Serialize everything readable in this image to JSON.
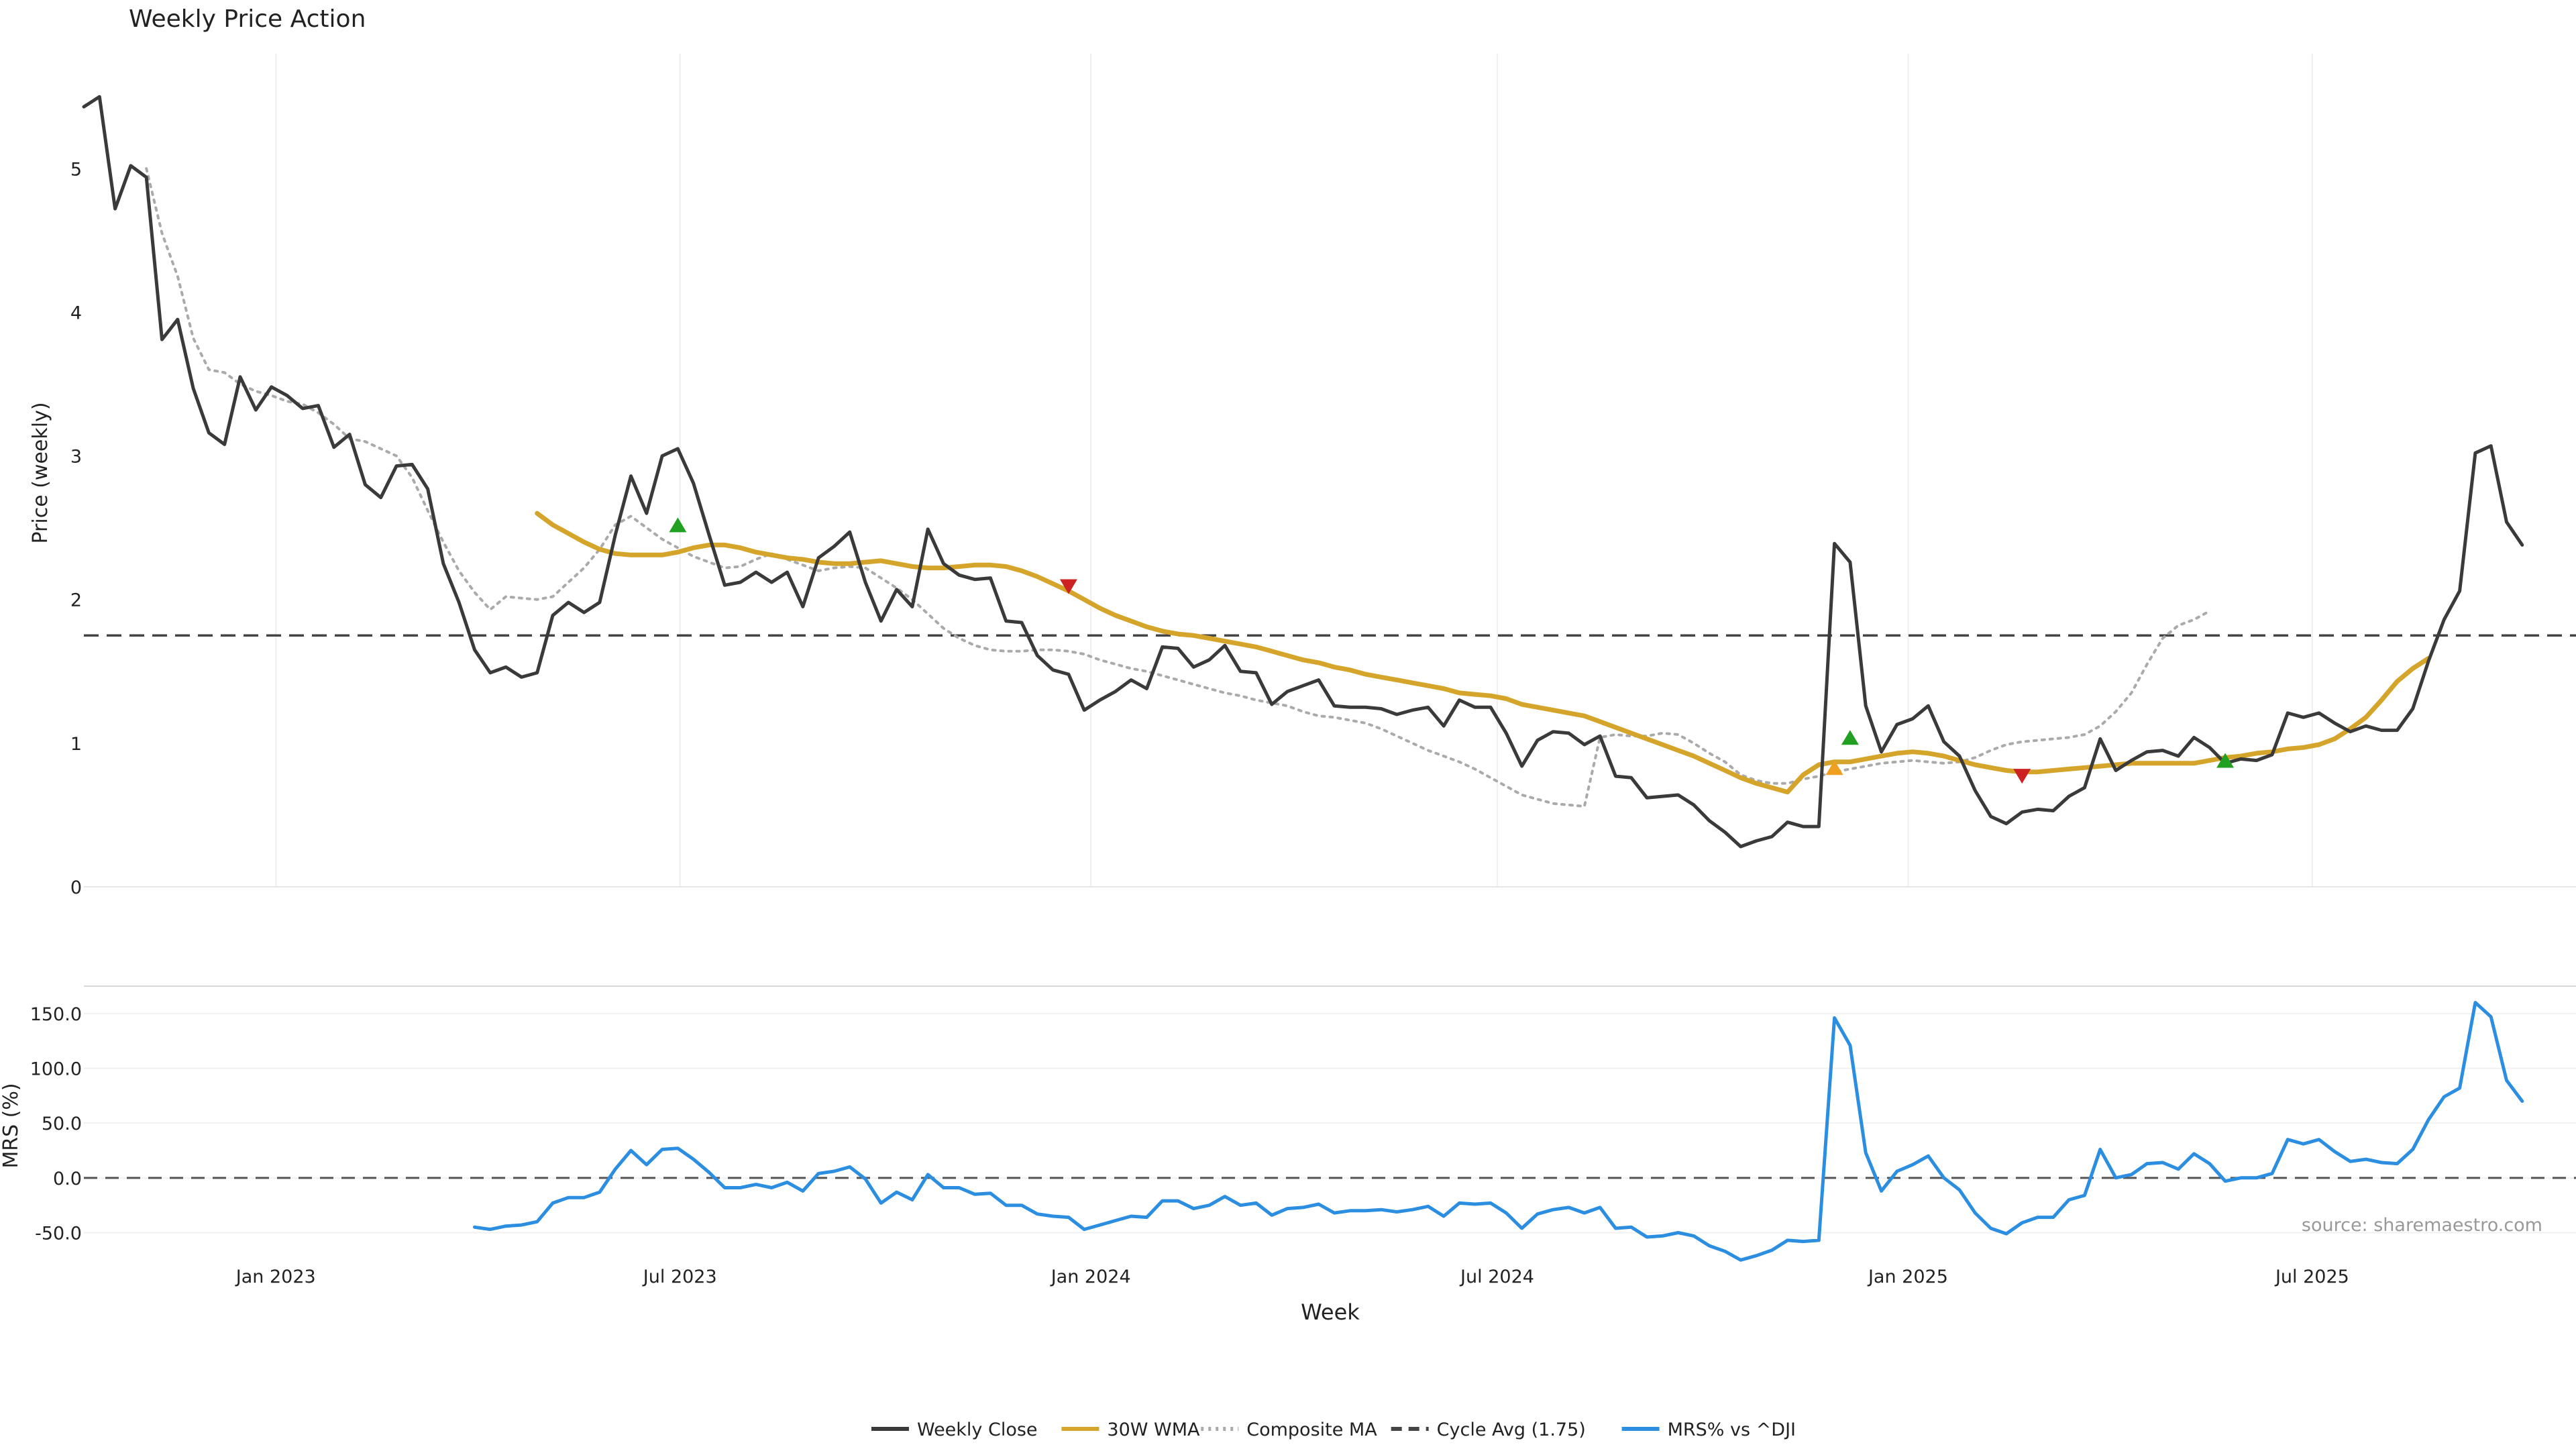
{
  "chart_data": [
    {
      "type": "line",
      "title": "Weekly Price Action",
      "ylabel": "Price (weekly)",
      "xlabel": "",
      "ylim": [
        0,
        5.8
      ],
      "yticks": [
        0,
        1,
        2,
        3,
        4,
        5
      ],
      "grid": "vertical",
      "x_start": "2022-10-07",
      "x_step_days": 7,
      "series": [
        {
          "name": "Weekly Close",
          "color": "#3a3a3a",
          "style": "solid",
          "values": [
            5.43,
            5.5,
            4.72,
            5.02,
            4.94,
            3.81,
            3.95,
            3.47,
            3.16,
            3.08,
            3.55,
            3.32,
            3.48,
            3.42,
            3.33,
            3.35,
            3.06,
            3.15,
            2.8,
            2.71,
            2.93,
            2.94,
            2.77,
            2.25,
            1.98,
            1.65,
            1.49,
            1.53,
            1.46,
            1.49,
            1.89,
            1.98,
            1.91,
            1.98,
            2.45,
            2.86,
            2.6,
            3.0,
            3.05,
            2.81,
            2.45,
            2.1,
            2.12,
            2.19,
            2.12,
            2.19,
            1.95,
            2.29,
            2.37,
            2.47,
            2.12,
            1.85,
            2.07,
            1.95,
            2.49,
            2.25,
            2.17,
            2.14,
            2.15,
            1.85,
            1.84,
            1.61,
            1.51,
            1.48,
            1.23,
            1.3,
            1.36,
            1.44,
            1.38,
            1.67,
            1.66,
            1.53,
            1.58,
            1.68,
            1.5,
            1.49,
            1.27,
            1.36,
            1.4,
            1.44,
            1.26,
            1.25,
            1.25,
            1.24,
            1.2,
            1.23,
            1.25,
            1.12,
            1.3,
            1.25,
            1.25,
            1.07,
            0.84,
            1.02,
            1.08,
            1.07,
            0.99,
            1.05,
            0.77,
            0.76,
            0.62,
            0.63,
            0.64,
            0.57,
            0.46,
            0.38,
            0.28,
            0.32,
            0.35,
            0.45,
            0.42,
            0.42,
            2.39,
            2.26,
            1.26,
            0.94,
            1.13,
            1.17,
            1.26,
            1.01,
            0.91,
            0.67,
            0.49,
            0.44,
            0.52,
            0.54,
            0.53,
            0.63,
            0.69,
            1.03,
            0.81,
            0.88,
            0.94,
            0.95,
            0.91,
            1.04,
            0.97,
            0.86,
            0.89,
            0.88,
            0.92,
            1.21,
            1.18,
            1.21,
            1.14,
            1.08,
            1.12,
            1.09,
            1.09,
            1.24,
            1.57,
            1.86,
            2.06,
            3.02,
            3.07,
            2.54,
            2.38
          ]
        },
        {
          "name": "30W WMA",
          "color": "#d4a52a",
          "style": "solid",
          "start_index": 29,
          "values": [
            2.6,
            2.52,
            2.46,
            2.4,
            2.35,
            2.32,
            2.31,
            2.31,
            2.31,
            2.33,
            2.36,
            2.38,
            2.38,
            2.36,
            2.33,
            2.31,
            2.29,
            2.28,
            2.26,
            2.25,
            2.25,
            2.26,
            2.27,
            2.25,
            2.23,
            2.22,
            2.22,
            2.23,
            2.24,
            2.24,
            2.23,
            2.2,
            2.16,
            2.11,
            2.06,
            2.0,
            1.94,
            1.89,
            1.85,
            1.81,
            1.78,
            1.76,
            1.75,
            1.73,
            1.71,
            1.69,
            1.67,
            1.64,
            1.61,
            1.58,
            1.56,
            1.53,
            1.51,
            1.48,
            1.46,
            1.44,
            1.42,
            1.4,
            1.38,
            1.35,
            1.34,
            1.33,
            1.31,
            1.27,
            1.25,
            1.23,
            1.21,
            1.19,
            1.15,
            1.11,
            1.07,
            1.03,
            0.99,
            0.95,
            0.91,
            0.86,
            0.81,
            0.76,
            0.72,
            0.69,
            0.66,
            0.78,
            0.85,
            0.87,
            0.87,
            0.89,
            0.91,
            0.93,
            0.94,
            0.93,
            0.91,
            0.88,
            0.85,
            0.83,
            0.81,
            0.8,
            0.8,
            0.81,
            0.82,
            0.83,
            0.84,
            0.85,
            0.86,
            0.86,
            0.86,
            0.86,
            0.86,
            0.88,
            0.9,
            0.91,
            0.93,
            0.94,
            0.96,
            0.97,
            0.99,
            1.03,
            1.1,
            1.18,
            1.3,
            1.43,
            1.52,
            1.59
          ]
        },
        {
          "name": "Composite MA",
          "color": "#aaaaaa",
          "style": "dotted",
          "start_index": 4,
          "values": [
            5.0,
            4.55,
            4.25,
            3.82,
            3.6,
            3.58,
            3.5,
            3.45,
            3.42,
            3.38,
            3.36,
            3.3,
            3.22,
            3.12,
            3.1,
            3.05,
            3.0,
            2.85,
            2.62,
            2.4,
            2.2,
            2.05,
            1.93,
            2.02,
            2.01,
            2.0,
            2.02,
            2.12,
            2.22,
            2.35,
            2.52,
            2.58,
            2.5,
            2.42,
            2.36,
            2.3,
            2.26,
            2.22,
            2.23,
            2.28,
            2.32,
            2.28,
            2.24,
            2.2,
            2.22,
            2.23,
            2.22,
            2.15,
            2.08,
            2.0,
            1.9,
            1.8,
            1.73,
            1.68,
            1.65,
            1.64,
            1.64,
            1.65,
            1.65,
            1.64,
            1.62,
            1.58,
            1.55,
            1.52,
            1.5,
            1.47,
            1.44,
            1.41,
            1.38,
            1.35,
            1.33,
            1.3,
            1.28,
            1.26,
            1.22,
            1.19,
            1.18,
            1.16,
            1.14,
            1.1,
            1.05,
            1.0,
            0.95,
            0.91,
            0.87,
            0.82,
            0.76,
            0.7,
            0.64,
            0.61,
            0.58,
            0.57,
            0.56,
            1.04,
            1.06,
            1.05,
            1.05,
            1.07,
            1.06,
            1.0,
            0.93,
            0.87,
            0.78,
            0.74,
            0.72,
            0.72,
            0.75,
            0.77,
            0.8,
            0.82,
            0.84,
            0.86,
            0.87,
            0.88,
            0.87,
            0.86,
            0.87,
            0.9,
            0.95,
            0.99,
            1.01,
            1.02,
            1.03,
            1.04,
            1.06,
            1.12,
            1.22,
            1.35,
            1.55,
            1.73,
            1.82,
            1.86,
            1.92
          ]
        }
      ],
      "reference_lines": [
        {
          "name": "Cycle Avg (1.75)",
          "value": 1.75,
          "style": "dashed",
          "color": "#444444"
        }
      ],
      "markers": [
        {
          "index": 38,
          "value": 2.52,
          "shape": "triangle-up",
          "color": "#22a022"
        },
        {
          "index": 63,
          "value": 2.09,
          "shape": "triangle-down",
          "color": "#cc2222"
        },
        {
          "index": 112,
          "value": 0.83,
          "shape": "triangle-up",
          "color": "#f0a020"
        },
        {
          "index": 113,
          "value": 1.04,
          "shape": "triangle-up",
          "color": "#22a022"
        },
        {
          "index": 124,
          "value": 0.77,
          "shape": "triangle-down",
          "color": "#cc2222"
        },
        {
          "index": 137,
          "value": 0.88,
          "shape": "triangle-up",
          "color": "#22a022"
        }
      ]
    },
    {
      "type": "line",
      "title": "",
      "ylabel": "MRS (%)",
      "xlabel": "Week",
      "ylim": [
        -65,
        175
      ],
      "yticks": [
        -50,
        0,
        50,
        100,
        150
      ],
      "ytick_labels": [
        "-50.0",
        "0.0",
        "50.0",
        "100.0",
        "150.0"
      ],
      "xticks": [
        {
          "label": "Jan 2023",
          "date": "2023-01-01"
        },
        {
          "label": "Jul 2023",
          "date": "2023-07-01"
        },
        {
          "label": "Jan 2024",
          "date": "2024-01-01"
        },
        {
          "label": "Jul 2024",
          "date": "2024-07-01"
        },
        {
          "label": "Jan 2025",
          "date": "2025-01-01"
        },
        {
          "label": "Jul 2025",
          "date": "2025-07-01"
        }
      ],
      "series": [
        {
          "name": "MRS% vs ^DJI",
          "color": "#2b8ee0",
          "style": "solid",
          "start_index": 25,
          "values": [
            -45,
            -47,
            -44,
            -43,
            -40,
            -23,
            -18,
            -18,
            -13,
            8,
            25,
            12,
            26,
            27,
            17,
            5,
            -9,
            -9,
            -6,
            -9,
            -4,
            -12,
            4,
            6,
            10,
            -1,
            -23,
            -13,
            -20,
            3,
            -9,
            -9,
            -15,
            -14,
            -25,
            -25,
            -33,
            -35,
            -36,
            -47,
            -43,
            -39,
            -35,
            -36,
            -21,
            -21,
            -28,
            -25,
            -17,
            -25,
            -23,
            -34,
            -28,
            -27,
            -24,
            -32,
            -30,
            -30,
            -29,
            -31,
            -29,
            -26,
            -35,
            -23,
            -24,
            -23,
            -32,
            -46,
            -33,
            -29,
            -27,
            -32,
            -27,
            -46,
            -45,
            -54,
            -53,
            -50,
            -53,
            -62,
            -67,
            -75,
            -71,
            -66,
            -57,
            -58,
            -57,
            146,
            121,
            23,
            -12,
            6,
            12,
            20,
            0,
            -11,
            -32,
            -46,
            -51,
            -41,
            -36,
            -36,
            -20,
            -16,
            26,
            0,
            3,
            13,
            14,
            8,
            22,
            13,
            -3,
            0,
            0,
            4,
            35,
            31,
            35,
            24,
            15,
            17,
            14,
            13,
            26,
            53,
            74,
            82,
            160,
            147,
            89,
            70
          ]
        }
      ],
      "reference_lines": [
        {
          "name": "",
          "value": 0,
          "style": "dashed",
          "color": "#555555"
        }
      ],
      "annotations": [
        {
          "text": "source: sharemaestro.com",
          "position": "bottom-right"
        }
      ]
    }
  ],
  "legend": {
    "position": "bottom-center",
    "items": [
      {
        "label": "Weekly Close",
        "color": "#3a3a3a",
        "style": "solid"
      },
      {
        "label": "30W WMA",
        "color": "#d4a52a",
        "style": "solid"
      },
      {
        "label": "Composite MA",
        "color": "#aaaaaa",
        "style": "dotted"
      },
      {
        "label": "Cycle Avg (1.75)",
        "color": "#444444",
        "style": "dashed"
      },
      {
        "label": "MRS% vs ^DJI",
        "color": "#2b8ee0",
        "style": "solid"
      }
    ]
  }
}
